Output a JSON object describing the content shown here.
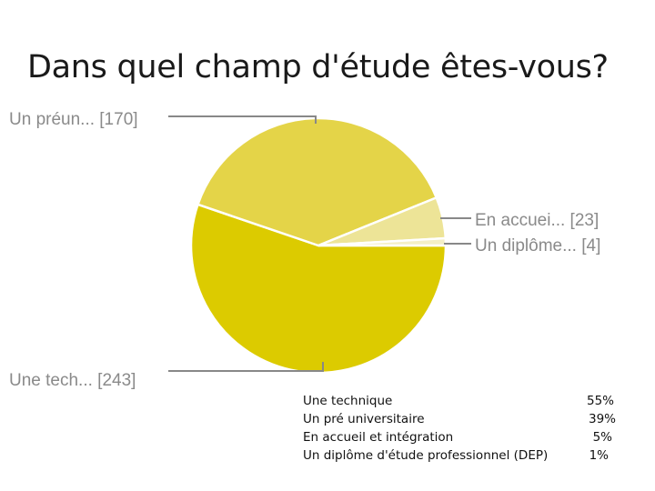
{
  "title": "Dans quel champ d'étude êtes-vous?",
  "chart_data": {
    "type": "pie",
    "title": "Dans quel champ d'étude êtes-vous?",
    "slices": [
      {
        "label": "Une tech... [243]",
        "value": 243,
        "color": "#dccb00"
      },
      {
        "label": "Un préun... [170]",
        "value": 170,
        "color": "#e4d448"
      },
      {
        "label": "En accuei... [23]",
        "value": 23,
        "color": "#ede497"
      },
      {
        "label": "Un diplôme... [4]",
        "value": 4,
        "color": "#f4efc6"
      }
    ]
  },
  "legend": [
    {
      "name": "Une technique",
      "percent": "55%"
    },
    {
      "name": "Un pré universitaire",
      "percent": "39%"
    },
    {
      "name": "En accueil et intégration",
      "percent": "5%"
    },
    {
      "name": "Un diplôme d'étude professionnel (DEP)",
      "percent": "1%"
    }
  ]
}
